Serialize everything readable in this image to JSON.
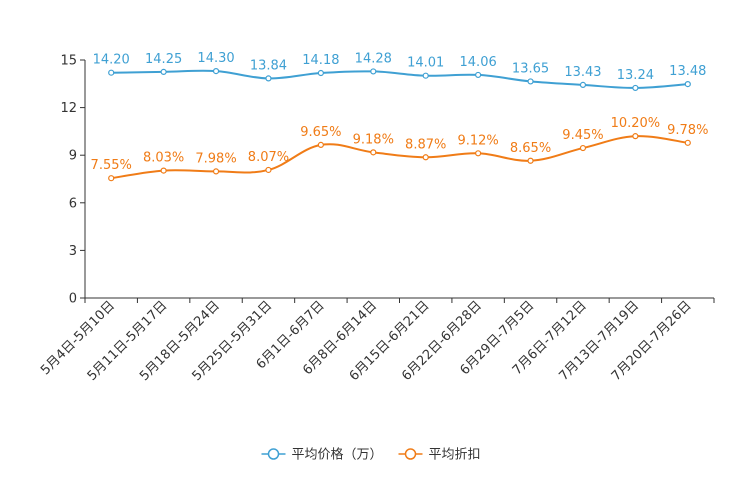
{
  "chart_data": {
    "type": "line",
    "title": "",
    "xlabel": "",
    "ylabel": "",
    "ylim": [
      0,
      15
    ],
    "yticks": [
      "0",
      "3",
      "6",
      "9",
      "12",
      "15"
    ],
    "categories": [
      "5月4日-5月10日",
      "5月11日-5月17日",
      "5月18日-5月24日",
      "5月25日-5月31日",
      "6月1日-6月7日",
      "6月8日-6月14日",
      "6月15日-6月21日",
      "6月22日-6月28日",
      "6月29日-7月5日",
      "7月6日-7月12日",
      "7月13日-7月19日",
      "7月20日-7月26日"
    ],
    "series": [
      {
        "name": "平均价格（万）",
        "color": "#3fa0d3",
        "values": [
          14.2,
          14.25,
          14.3,
          13.84,
          14.18,
          14.28,
          14.01,
          14.06,
          13.65,
          13.43,
          13.24,
          13.48
        ],
        "labels": [
          "14.20",
          "14.25",
          "14.30",
          "13.84",
          "14.18",
          "14.28",
          "14.01",
          "14.06",
          "13.65",
          "13.43",
          "13.24",
          "13.48"
        ]
      },
      {
        "name": "平均折扣",
        "color": "#f07c17",
        "values": [
          7.55,
          8.03,
          7.98,
          8.07,
          9.65,
          9.18,
          8.87,
          9.12,
          8.65,
          9.45,
          10.2,
          9.78
        ],
        "labels": [
          "7.55%",
          "8.03%",
          "7.98%",
          "8.07%",
          "9.65%",
          "9.18%",
          "8.87%",
          "9.12%",
          "8.65%",
          "9.45%",
          "10.20%",
          "9.78%"
        ]
      }
    ],
    "legend": "bottom-center"
  }
}
